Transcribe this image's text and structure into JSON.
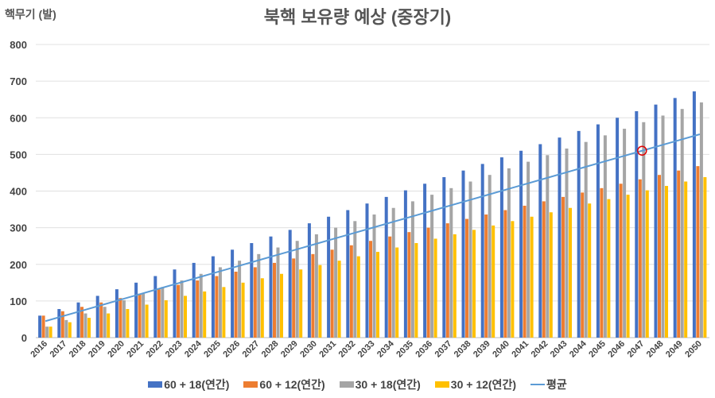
{
  "chart_data": {
    "type": "bar",
    "title": "북핵 보유량 예상 (중장기)",
    "ylabel": "핵무기 (발)",
    "xlabel": "",
    "ylim": [
      0,
      800
    ],
    "yticks": [
      0,
      100,
      200,
      300,
      400,
      500,
      600,
      700,
      800
    ],
    "grid": true,
    "legend_position": "bottom",
    "categories": [
      "2016",
      "2017",
      "2018",
      "2019",
      "2020",
      "2021",
      "2022",
      "2023",
      "2024",
      "2025",
      "2026",
      "2027",
      "2028",
      "2029",
      "2030",
      "2031",
      "2032",
      "2033",
      "2034",
      "2035",
      "2036",
      "2037",
      "2038",
      "2039",
      "2040",
      "2041",
      "2042",
      "2043",
      "2044",
      "2045",
      "2046",
      "2047",
      "2048",
      "2049",
      "2050"
    ],
    "series": [
      {
        "name": "60 + 18(연간)",
        "color": "#4472C4",
        "values": [
          60,
          78,
          96,
          114,
          132,
          150,
          168,
          186,
          204,
          222,
          240,
          258,
          276,
          294,
          312,
          330,
          348,
          366,
          384,
          402,
          420,
          438,
          456,
          474,
          492,
          510,
          528,
          546,
          564,
          582,
          600,
          618,
          636,
          654,
          672
        ]
      },
      {
        "name": "60 + 12(연간)",
        "color": "#ED7D31",
        "values": [
          60,
          72,
          84,
          96,
          108,
          120,
          132,
          144,
          156,
          168,
          180,
          192,
          204,
          216,
          228,
          240,
          252,
          264,
          276,
          288,
          300,
          312,
          324,
          336,
          348,
          360,
          372,
          384,
          396,
          408,
          420,
          432,
          444,
          456,
          468
        ]
      },
      {
        "name": "30 + 18(연간)",
        "color": "#A5A5A5",
        "values": [
          30,
          48,
          66,
          84,
          102,
          120,
          138,
          156,
          174,
          192,
          210,
          228,
          246,
          264,
          282,
          300,
          318,
          336,
          354,
          372,
          390,
          408,
          426,
          444,
          462,
          480,
          498,
          516,
          534,
          552,
          570,
          588,
          606,
          624,
          642
        ]
      },
      {
        "name": "30 + 12(연간)",
        "color": "#FFC000",
        "values": [
          30,
          42,
          54,
          66,
          78,
          90,
          102,
          114,
          126,
          138,
          150,
          162,
          174,
          186,
          198,
          210,
          222,
          234,
          246,
          258,
          270,
          282,
          294,
          306,
          318,
          330,
          342,
          354,
          366,
          378,
          390,
          402,
          414,
          426,
          438
        ]
      }
    ],
    "line": {
      "name": "평균",
      "color": "#5B9BD5",
      "values": [
        45,
        60,
        75,
        90,
        105,
        120,
        135,
        150,
        165,
        180,
        195,
        210,
        225,
        240,
        255,
        270,
        285,
        300,
        315,
        330,
        345,
        360,
        375,
        390,
        405,
        420,
        435,
        450,
        465,
        480,
        495,
        510,
        525,
        540,
        555
      ]
    },
    "annotation": {
      "type": "circle",
      "category": "2047",
      "value": 510,
      "color": "#E00000"
    }
  }
}
